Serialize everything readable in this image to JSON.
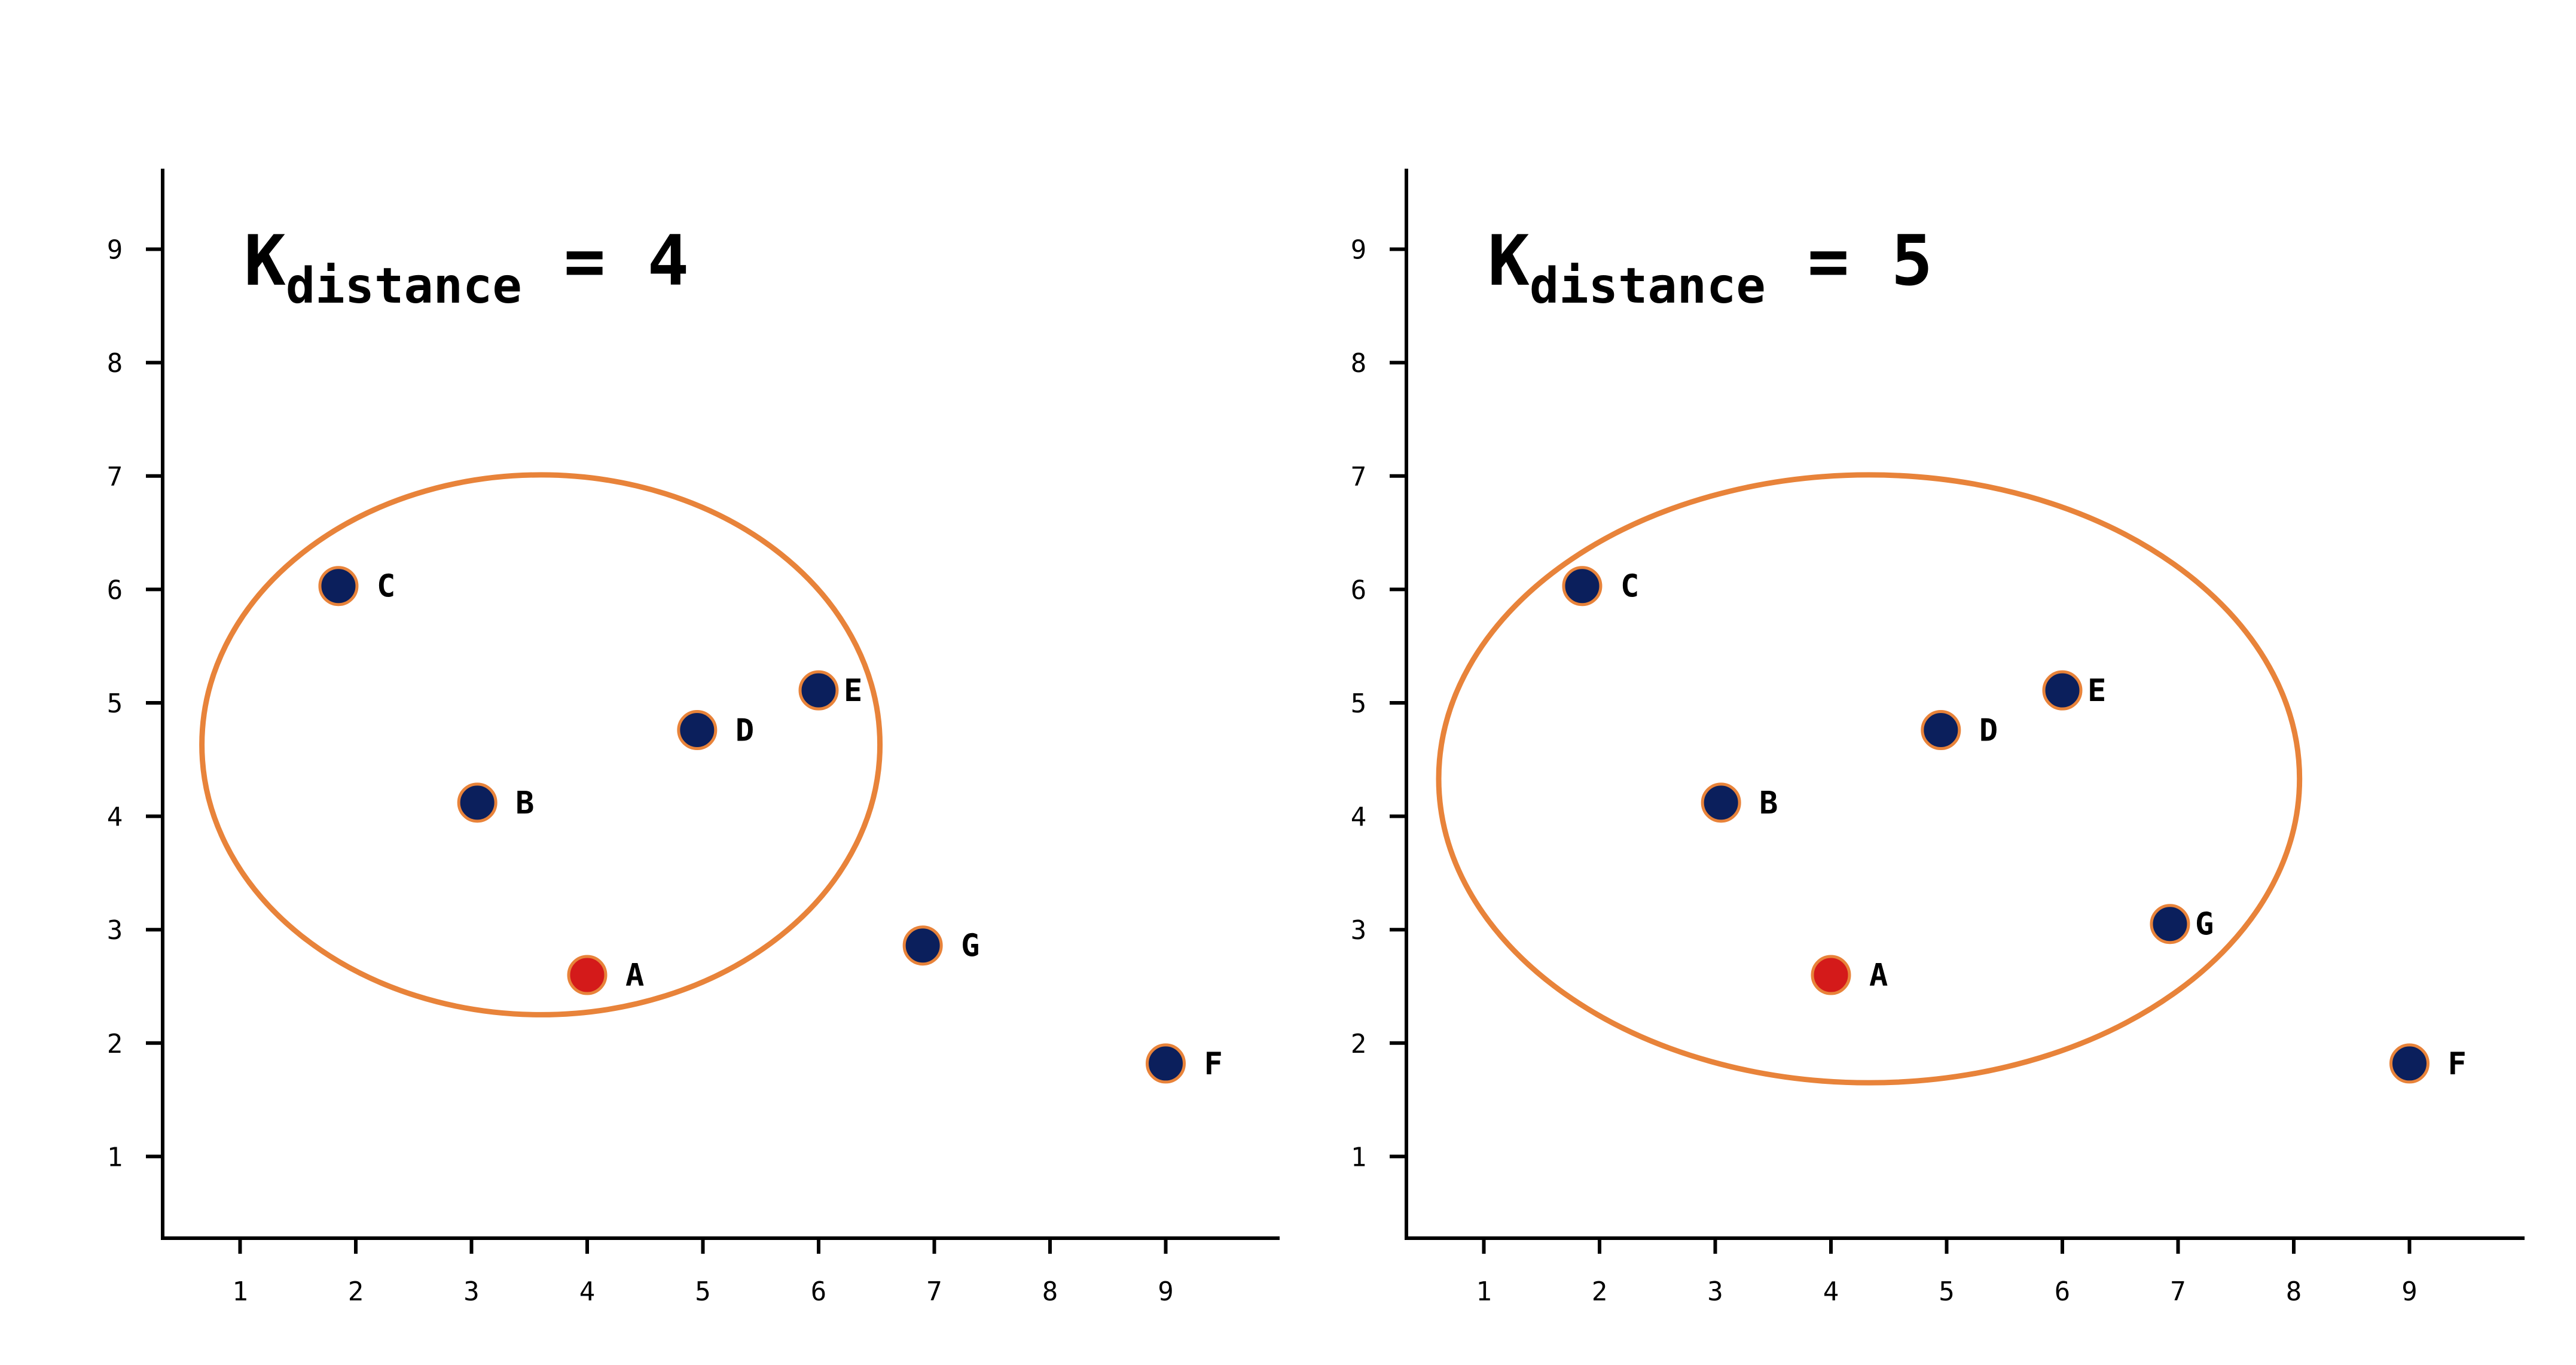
{
  "chart_data": [
    {
      "type": "scatter",
      "title": {
        "main": "K",
        "subscript": "distance",
        "suffix": "= 4"
      },
      "x_ticks": [
        "1",
        "2",
        "3",
        "4",
        "5",
        "6",
        "7",
        "8",
        "9"
      ],
      "y_ticks": [
        "1",
        "2",
        "3",
        "4",
        "5",
        "6",
        "7",
        "8",
        "9"
      ],
      "xlim": [
        0.35,
        9.7
      ],
      "ylim": [
        0.28,
        9.7
      ],
      "grid": false,
      "points": [
        {
          "label": "A",
          "x": 4.0,
          "y": 2.6,
          "role": "query"
        },
        {
          "label": "B",
          "x": 3.05,
          "y": 4.12,
          "role": "neighbor"
        },
        {
          "label": "C",
          "x": 1.85,
          "y": 6.03,
          "role": "neighbor"
        },
        {
          "label": "D",
          "x": 4.95,
          "y": 4.76,
          "role": "neighbor"
        },
        {
          "label": "E",
          "x": 6.0,
          "y": 5.11,
          "role": "neighbor"
        },
        {
          "label": "G",
          "x": 6.9,
          "y": 2.86,
          "role": "other"
        },
        {
          "label": "F",
          "x": 9.0,
          "y": 1.82,
          "role": "other"
        }
      ],
      "ellipse": {
        "cx": 3.6,
        "cy": 4.63,
        "rx": 2.93,
        "ry": 2.38
      }
    },
    {
      "type": "scatter",
      "title": {
        "main": "K",
        "subscript": "distance",
        "suffix": "= 5"
      },
      "x_ticks": [
        "1",
        "2",
        "3",
        "4",
        "5",
        "6",
        "7",
        "8",
        "9"
      ],
      "y_ticks": [
        "1",
        "2",
        "3",
        "4",
        "5",
        "6",
        "7",
        "8",
        "9"
      ],
      "xlim": [
        0.35,
        9.7
      ],
      "ylim": [
        0.28,
        9.7
      ],
      "grid": false,
      "points": [
        {
          "label": "A",
          "x": 4.0,
          "y": 2.6,
          "role": "query"
        },
        {
          "label": "B",
          "x": 3.05,
          "y": 4.12,
          "role": "neighbor"
        },
        {
          "label": "C",
          "x": 1.85,
          "y": 6.03,
          "role": "neighbor"
        },
        {
          "label": "D",
          "x": 4.95,
          "y": 4.76,
          "role": "neighbor"
        },
        {
          "label": "E",
          "x": 6.0,
          "y": 5.11,
          "role": "neighbor"
        },
        {
          "label": "G",
          "x": 6.93,
          "y": 3.05,
          "role": "neighbor"
        },
        {
          "label": "F",
          "x": 9.0,
          "y": 1.82,
          "role": "other"
        }
      ],
      "ellipse": {
        "cx": 4.33,
        "cy": 4.33,
        "rx": 3.72,
        "ry": 2.68
      }
    }
  ],
  "colors": {
    "point_fill": "#0b1f5c",
    "point_stroke": "#e8833a",
    "query_fill": "#d41a1a",
    "query_stroke": "#e8833a",
    "ellipse": "#e8833a",
    "axis": "#000000"
  }
}
